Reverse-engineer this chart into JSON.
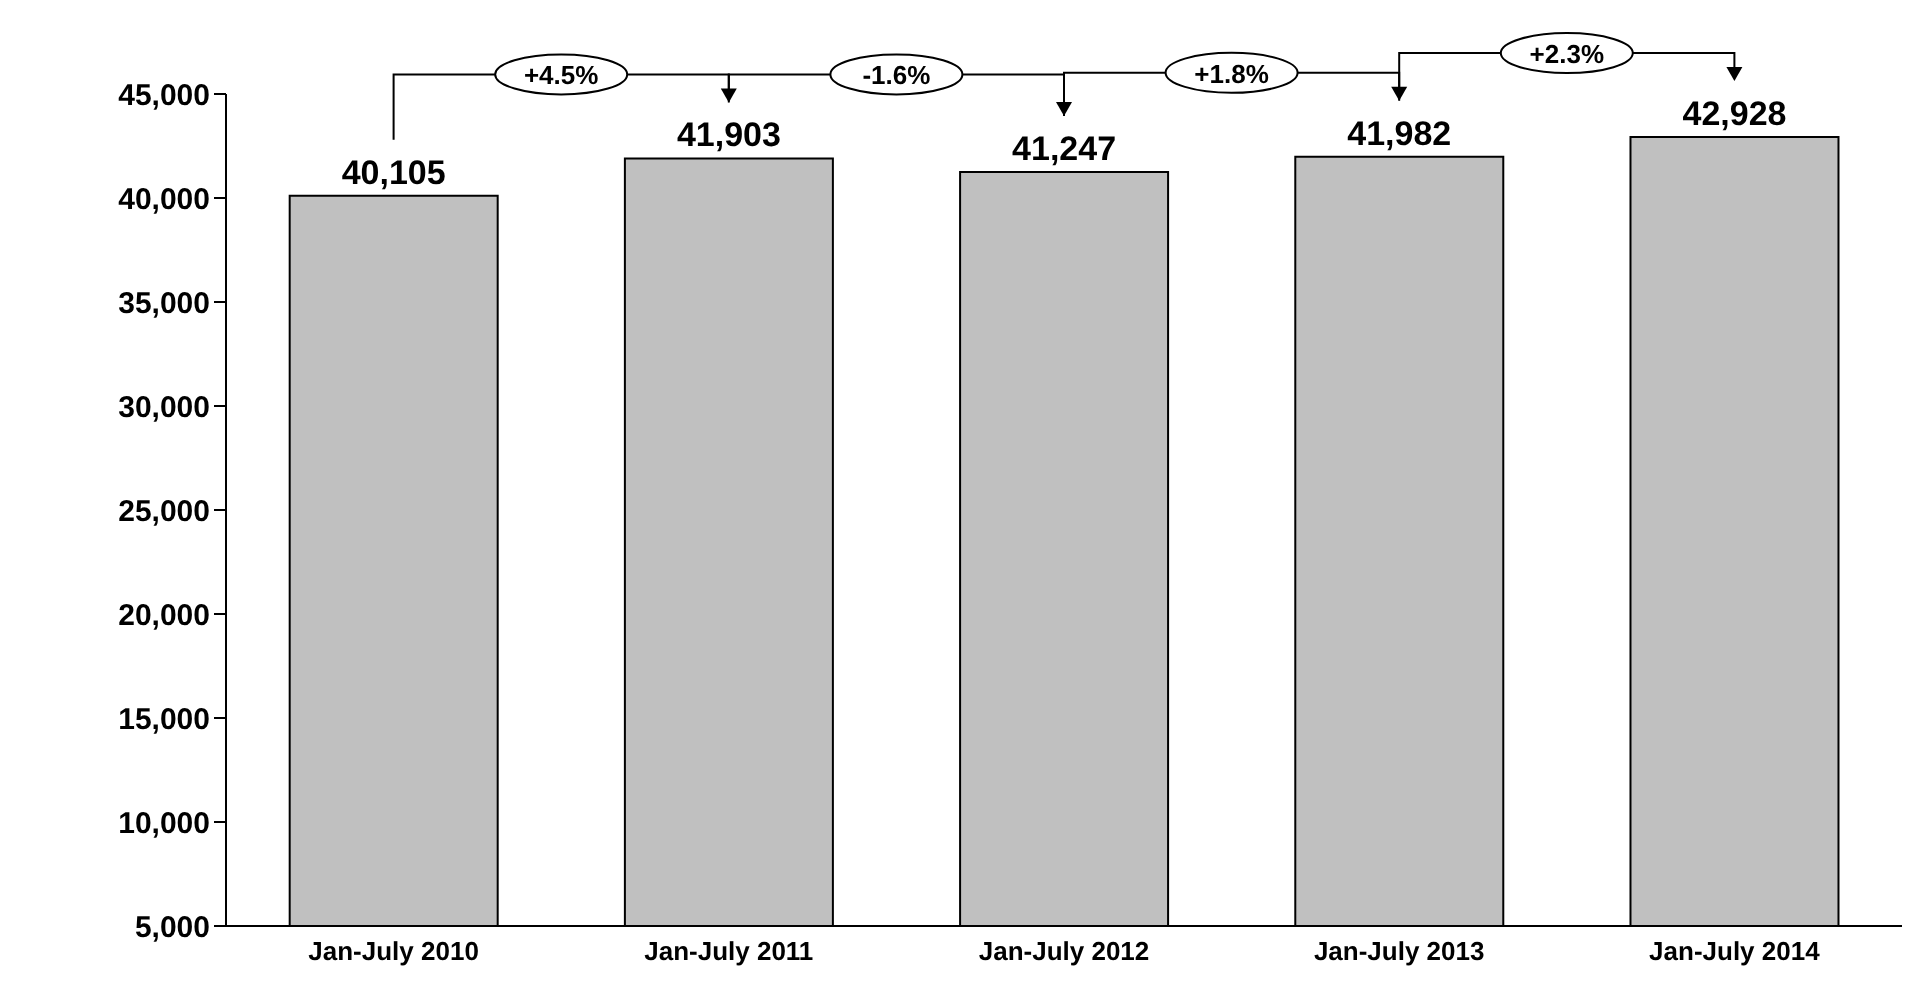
{
  "chart_data": {
    "type": "bar",
    "categories": [
      "Jan-July 2010",
      "Jan-July 2011",
      "Jan-July 2012",
      "Jan-July 2013",
      "Jan-July 2014"
    ],
    "values": [
      40105,
      41903,
      41247,
      41982,
      42928
    ],
    "value_labels": [
      "40,105",
      "41,903",
      "41,247",
      "41,982",
      "42,928"
    ],
    "color": "#c0c0c0",
    "ylim": [
      5000,
      45000
    ],
    "yticks": [
      {
        "value": 5000,
        "label": "5,000"
      },
      {
        "value": 10000,
        "label": "10,000"
      },
      {
        "value": 15000,
        "label": "15,000"
      },
      {
        "value": 20000,
        "label": "20,000"
      },
      {
        "value": 25000,
        "label": "25,000"
      },
      {
        "value": 30000,
        "label": "30,000"
      },
      {
        "value": 35000,
        "label": "35,000"
      },
      {
        "value": 40000,
        "label": "40,000"
      },
      {
        "value": 45000,
        "label": "45,000"
      }
    ],
    "annotations": [
      "+4.5%",
      "-1.6%",
      "+1.8%",
      "+2.3%"
    ]
  }
}
